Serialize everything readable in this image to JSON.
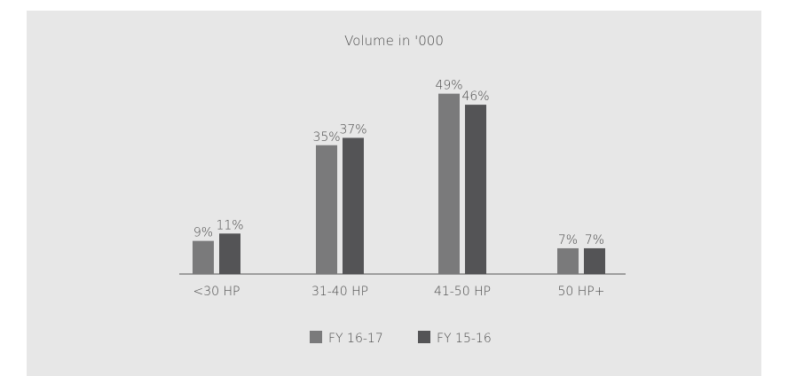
{
  "chart_data": {
    "type": "bar",
    "title": "Volume in '000",
    "categories": [
      "<30 HP",
      "31-40 HP",
      "41-50 HP",
      "50 HP+"
    ],
    "series": [
      {
        "name": "FY 16-17",
        "values": [
          9,
          35,
          49,
          7
        ],
        "labels": [
          "9%",
          "35%",
          "49%",
          "7%"
        ],
        "color": "#7a7a7b"
      },
      {
        "name": "FY 15-16",
        "values": [
          11,
          37,
          46,
          7
        ],
        "labels": [
          "11%",
          "37%",
          "46%",
          "7%"
        ],
        "color": "#545456"
      }
    ],
    "unit": "%",
    "ylim": [
      0,
      50
    ],
    "grid": false,
    "legend": "bottom"
  }
}
